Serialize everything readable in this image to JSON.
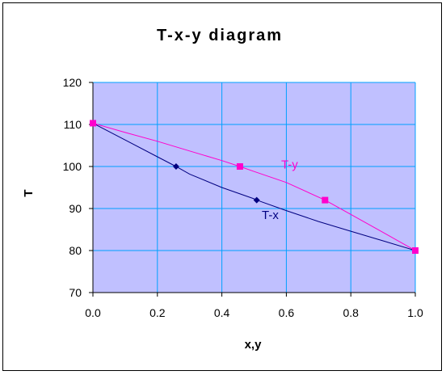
{
  "chart_data": {
    "type": "line",
    "title": "T-x-y diagram",
    "xlabel": "x,y",
    "ylabel": "T",
    "xlim": [
      0,
      1
    ],
    "ylim": [
      70,
      120
    ],
    "xticks": [
      0.0,
      0.2,
      0.4,
      0.6,
      0.8,
      1.0
    ],
    "xtick_labels": [
      "0.0",
      "0.2",
      "0.4",
      "0.6",
      "0.8",
      "1.0"
    ],
    "yticks": [
      70,
      80,
      90,
      100,
      110,
      120
    ],
    "ytick_labels": [
      "70",
      "80",
      "90",
      "100",
      "110",
      "120"
    ],
    "grid": true,
    "plot_background": "#c0c0ff",
    "gridline_color": "#00a0ff",
    "series": [
      {
        "name": "T-x",
        "color": "#000080",
        "marker": "diamond",
        "x": [
          0.0,
          0.258,
          0.508,
          1.0
        ],
        "y": [
          110.3,
          100.0,
          92.0,
          80.0
        ],
        "curve_x": [
          0.0,
          0.1,
          0.2,
          0.258,
          0.3,
          0.4,
          0.5,
          0.508,
          0.6,
          0.7,
          0.8,
          0.9,
          1.0
        ],
        "curve_y": [
          110.3,
          106.3,
          102.3,
          100.0,
          98.2,
          95.0,
          92.3,
          92.0,
          89.5,
          86.9,
          84.6,
          82.3,
          80.0
        ]
      },
      {
        "name": "T-y",
        "color": "#ff00cc",
        "marker": "square",
        "x": [
          0.0,
          0.456,
          0.72,
          1.0
        ],
        "y": [
          110.3,
          100.0,
          92.0,
          80.0
        ],
        "curve_x": [
          0.0,
          0.1,
          0.2,
          0.3,
          0.4,
          0.456,
          0.5,
          0.6,
          0.72,
          0.8,
          0.9,
          1.0
        ],
        "curve_y": [
          110.3,
          108.1,
          106.0,
          103.7,
          101.4,
          100.0,
          98.8,
          96.2,
          92.0,
          88.6,
          84.3,
          80.0
        ]
      }
    ]
  }
}
